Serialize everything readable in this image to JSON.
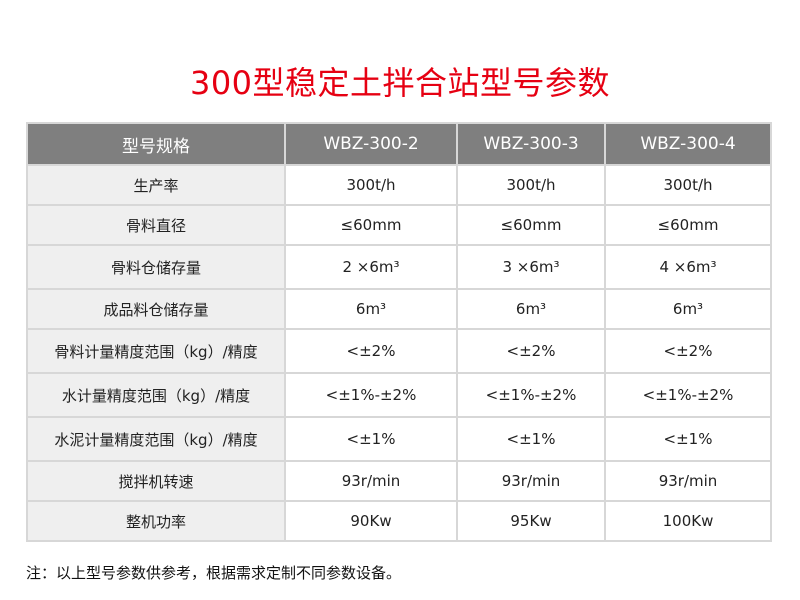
{
  "title": "300型稳定土拌合站型号参数",
  "table": {
    "headers": [
      "型号规格",
      "WBZ-300-2",
      "WBZ-300-3",
      "WBZ-300-4"
    ],
    "rows": [
      {
        "label": "生产率",
        "values": [
          "300t/h",
          "300t/h",
          "300t/h"
        ]
      },
      {
        "label": "骨料直径",
        "values": [
          "≤60mm",
          "≤60mm",
          "≤60mm"
        ]
      },
      {
        "label": "骨料仓储存量",
        "values": [
          "2 ×6m³",
          "3 ×6m³",
          "4 ×6m³"
        ]
      },
      {
        "label": "成品料仓储存量",
        "values": [
          "6m³",
          "6m³",
          "6m³"
        ]
      },
      {
        "label": "骨料计量精度范围（kg）/精度",
        "values": [
          "<±2%",
          "<±2%",
          "<±2%"
        ]
      },
      {
        "label": "水计量精度范围（kg）/精度",
        "values": [
          "<±1%-±2%",
          "<±1%-±2%",
          "<±1%-±2%"
        ]
      },
      {
        "label": "水泥计量精度范围（kg）/精度",
        "values": [
          "<±1%",
          "<±1%",
          "<±1%"
        ]
      },
      {
        "label": "搅拌机转速",
        "values": [
          "93r/min",
          "93r/min",
          "93r/min"
        ]
      },
      {
        "label": "整机功率",
        "values": [
          "90Kw",
          "95Kw",
          "100Kw"
        ]
      }
    ]
  },
  "note": "注：以上型号参数供参考，根据需求定制不同参数设备。",
  "colors": {
    "title": "#e60012",
    "header_bg": "#7f7f7f",
    "label_bg": "#efefef",
    "border": "#d7d7d7"
  }
}
